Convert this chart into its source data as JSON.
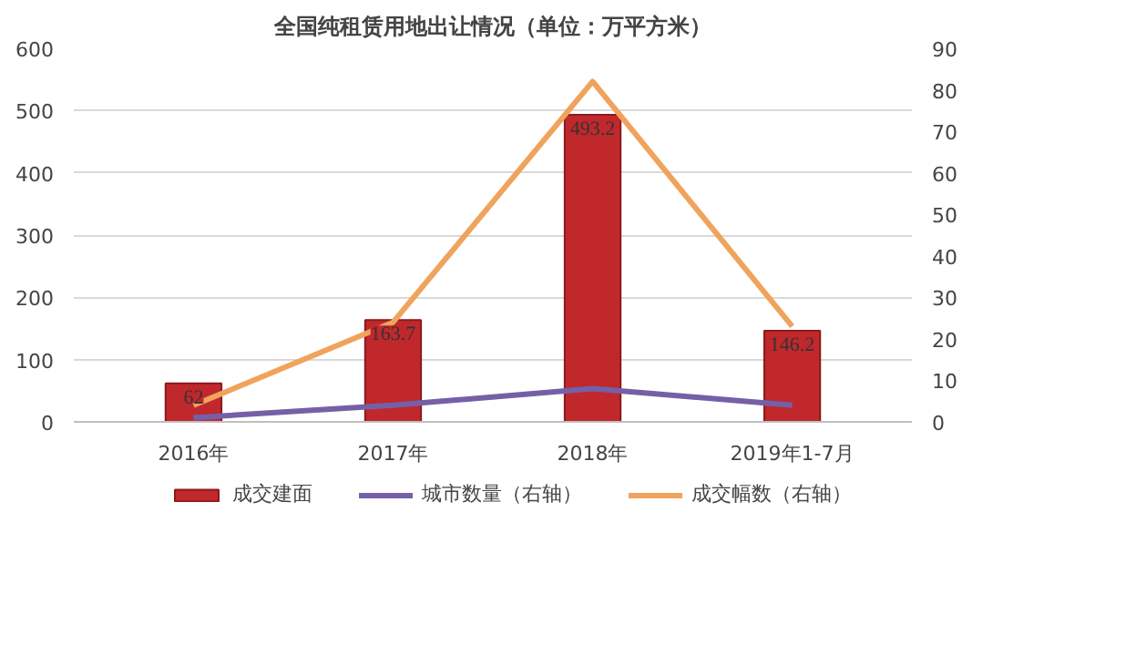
{
  "chart_data": {
    "type": "bar",
    "title": "全国纯租赁用地出让情况（单位：万平方米）",
    "categories": [
      "2016年",
      "2017年",
      "2018年",
      "2019年1-7月"
    ],
    "series": [
      {
        "name": "成交建面",
        "color": "#c0282c",
        "values": [
          62,
          163.7,
          493.2,
          146.2
        ],
        "value_labels": [
          "62",
          "163.7",
          "493.2",
          "146.2"
        ]
      },
      {
        "name": "城市数量（右轴）",
        "color": "#7560a8",
        "values": [
          1,
          4,
          8,
          4
        ],
        "type": "line",
        "axis": "y2"
      },
      {
        "name": "成交幅数（右轴）",
        "color": "#f0a35c",
        "values": [
          4,
          24,
          82,
          23
        ],
        "type": "line",
        "axis": "y2"
      }
    ],
    "ylim": [
      0,
      600
    ],
    "yticks": [
      0,
      100,
      200,
      300,
      400,
      500,
      600
    ],
    "y2lim": [
      0,
      90
    ],
    "y2ticks": [
      0,
      10,
      20,
      30,
      40,
      50,
      60,
      70,
      80,
      90
    ],
    "grid": "y",
    "legend": "bottom",
    "marker": "none",
    "line_style": "solid"
  }
}
